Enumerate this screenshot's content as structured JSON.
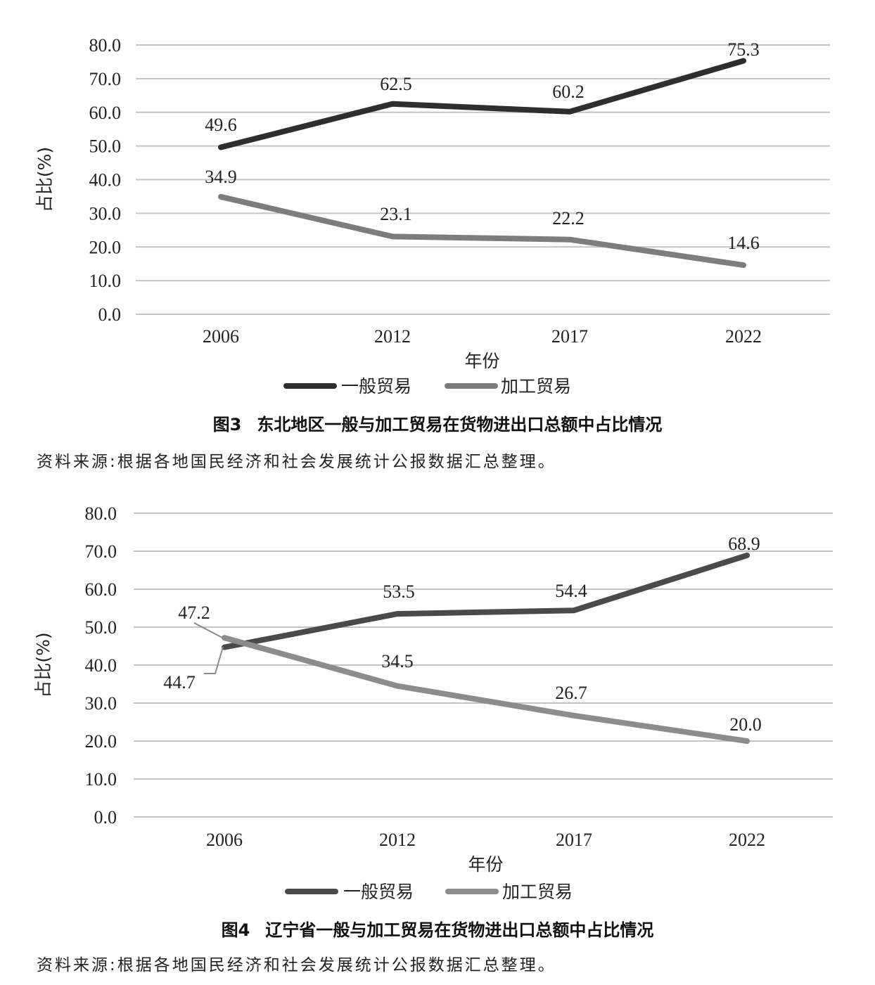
{
  "chart_data": [
    {
      "type": "line",
      "categories": [
        "2006",
        "2012",
        "2017",
        "2022"
      ],
      "series": [
        {
          "name": "一般贸易",
          "values": [
            49.6,
            62.5,
            60.2,
            75.3
          ],
          "color": "#2e2e2e"
        },
        {
          "name": "加工贸易",
          "values": [
            34.9,
            23.1,
            22.2,
            14.6
          ],
          "color": "#7d7d7d"
        }
      ],
      "data_labels": {
        "一般贸易": [
          "49.6",
          "62.5",
          "60.2",
          "75.3"
        ],
        "加工贸易": [
          "34.9",
          "23.1",
          "22.2",
          "14.6"
        ]
      },
      "y_ticks": [
        "0.0",
        "10.0",
        "20.0",
        "30.0",
        "40.0",
        "50.0",
        "60.0",
        "70.0",
        "80.0"
      ],
      "xlabel": "年份",
      "ylabel": "占比(%)",
      "ylim": [
        0,
        80
      ],
      "grid": true,
      "legend": "bottom"
    },
    {
      "type": "line",
      "categories": [
        "2006",
        "2012",
        "2017",
        "2022"
      ],
      "series": [
        {
          "name": "一般贸易",
          "values": [
            44.7,
            53.5,
            54.4,
            68.9
          ],
          "color": "#4a4a4a"
        },
        {
          "name": "加工贸易",
          "values": [
            47.2,
            34.5,
            26.7,
            20.0
          ],
          "color": "#8c8c8c"
        }
      ],
      "data_labels": {
        "一般贸易": [
          "44.7",
          "53.5",
          "54.4",
          "68.9"
        ],
        "加工贸易": [
          "47.2",
          "34.5",
          "26.7",
          "20.0"
        ]
      },
      "y_ticks": [
        "0.0",
        "10.0",
        "20.0",
        "30.0",
        "40.0",
        "50.0",
        "60.0",
        "70.0",
        "80.0"
      ],
      "xlabel": "年份",
      "ylabel": "占比(%)",
      "ylim": [
        0,
        80
      ],
      "grid": true,
      "legend": "bottom"
    }
  ],
  "captions": [
    {
      "number": "图3",
      "text": "东北地区一般与加工贸易在货物进出口总额中占比情况"
    },
    {
      "number": "图4",
      "text": "辽宁省一般与加工贸易在货物进出口总额中占比情况"
    }
  ],
  "sources": [
    "资料来源:根据各地国民经济和社会发展统计公报数据汇总整理。",
    "资料来源:根据各地国民经济和社会发展统计公报数据汇总整理。"
  ]
}
